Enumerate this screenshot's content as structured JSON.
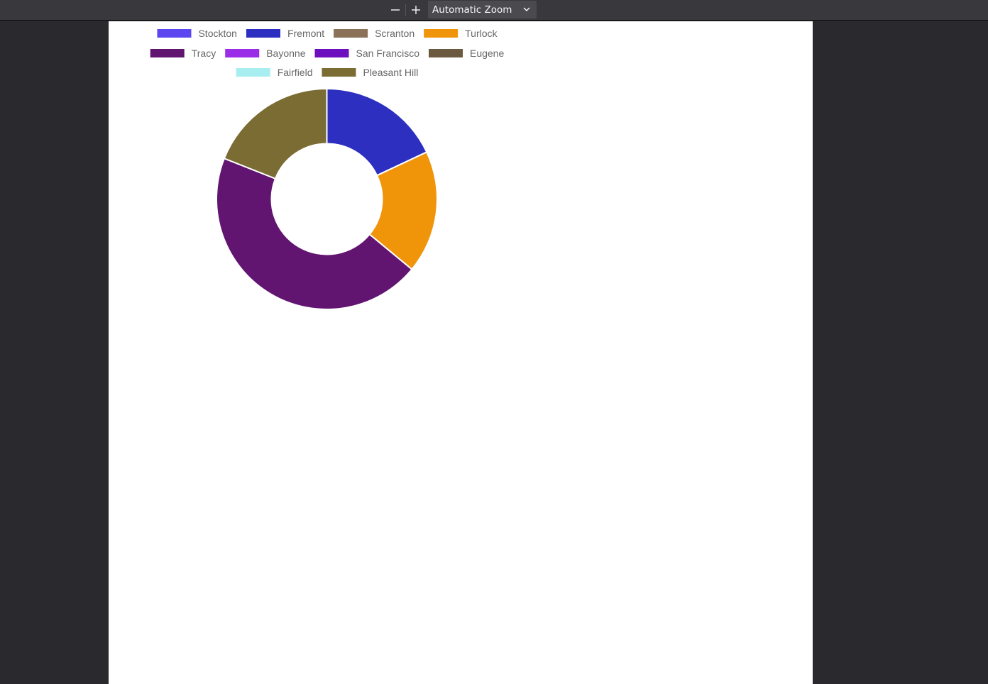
{
  "toolbar": {
    "zoom_out_icon": "minus-icon",
    "zoom_in_icon": "plus-icon",
    "zoom_label": "Automatic Zoom",
    "dropdown_icon": "chevron-down-icon"
  },
  "chart_data": {
    "type": "doughnut",
    "categories": [
      "Stockton",
      "Fremont",
      "Scranton",
      "Turlock",
      "Tracy",
      "Bayonne",
      "San Francisco",
      "Eugene",
      "Fairfield",
      "Pleasant Hill"
    ],
    "values": [
      0,
      18,
      0,
      18,
      45,
      0,
      0,
      0,
      0,
      19
    ],
    "colors": [
      "#5b46f0",
      "#2c2fbf",
      "#8a7158",
      "#f0950a",
      "#611470",
      "#9a2ee8",
      "#6d0fbf",
      "#6b5a40",
      "#a8eef0",
      "#7a6c33"
    ],
    "legend": "top",
    "start_angle_deg": -90
  }
}
